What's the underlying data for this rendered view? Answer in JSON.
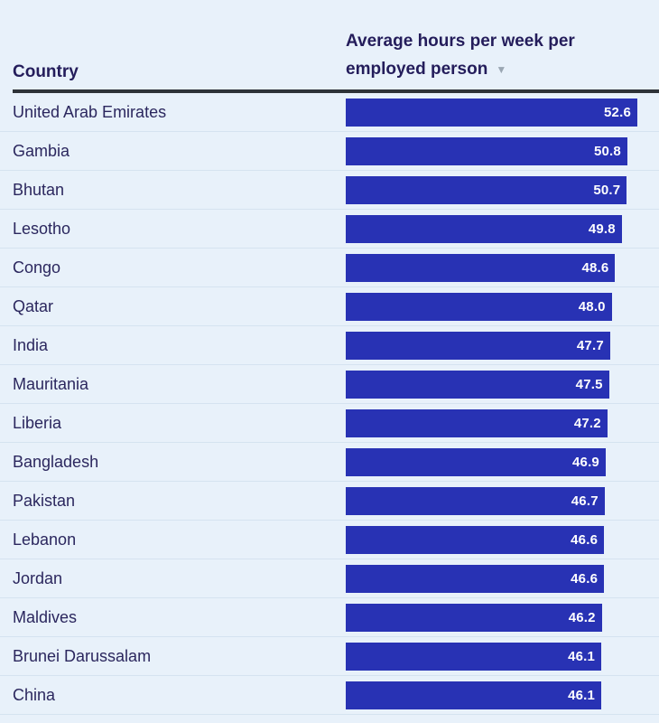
{
  "colors": {
    "background": "#e8f1fa",
    "bar": "#2832b4",
    "header_text": "#241d5b",
    "row_text": "#2b275e",
    "value_text": "#ffffff",
    "rule": "#2e3338",
    "separator": "#d5e3f0",
    "sort_arrow": "#9aa6b2"
  },
  "table": {
    "header": {
      "country_label": "Country",
      "value_label_line1": "Average hours per week per",
      "value_label_line2": "employed person",
      "sort_icon": "▼",
      "sort_direction": "descending"
    }
  },
  "chart_data": {
    "type": "bar",
    "orientation": "horizontal",
    "title": "Average hours per week per employed person",
    "xlabel": "Country",
    "ylabel": "Average hours per week per employed person",
    "xlim": [
      0,
      52.6
    ],
    "sort": "descending by value",
    "value_format": "one_decimal",
    "bar_color": "#2832b4",
    "categories": [
      "United Arab Emirates",
      "Gambia",
      "Bhutan",
      "Lesotho",
      "Congo",
      "Qatar",
      "India",
      "Mauritania",
      "Liberia",
      "Bangladesh",
      "Pakistan",
      "Lebanon",
      "Jordan",
      "Maldives",
      "Brunei Darussalam",
      "China"
    ],
    "values": [
      52.6,
      50.8,
      50.7,
      49.8,
      48.6,
      48.0,
      47.7,
      47.5,
      47.2,
      46.9,
      46.7,
      46.6,
      46.6,
      46.2,
      46.1,
      46.1
    ]
  }
}
